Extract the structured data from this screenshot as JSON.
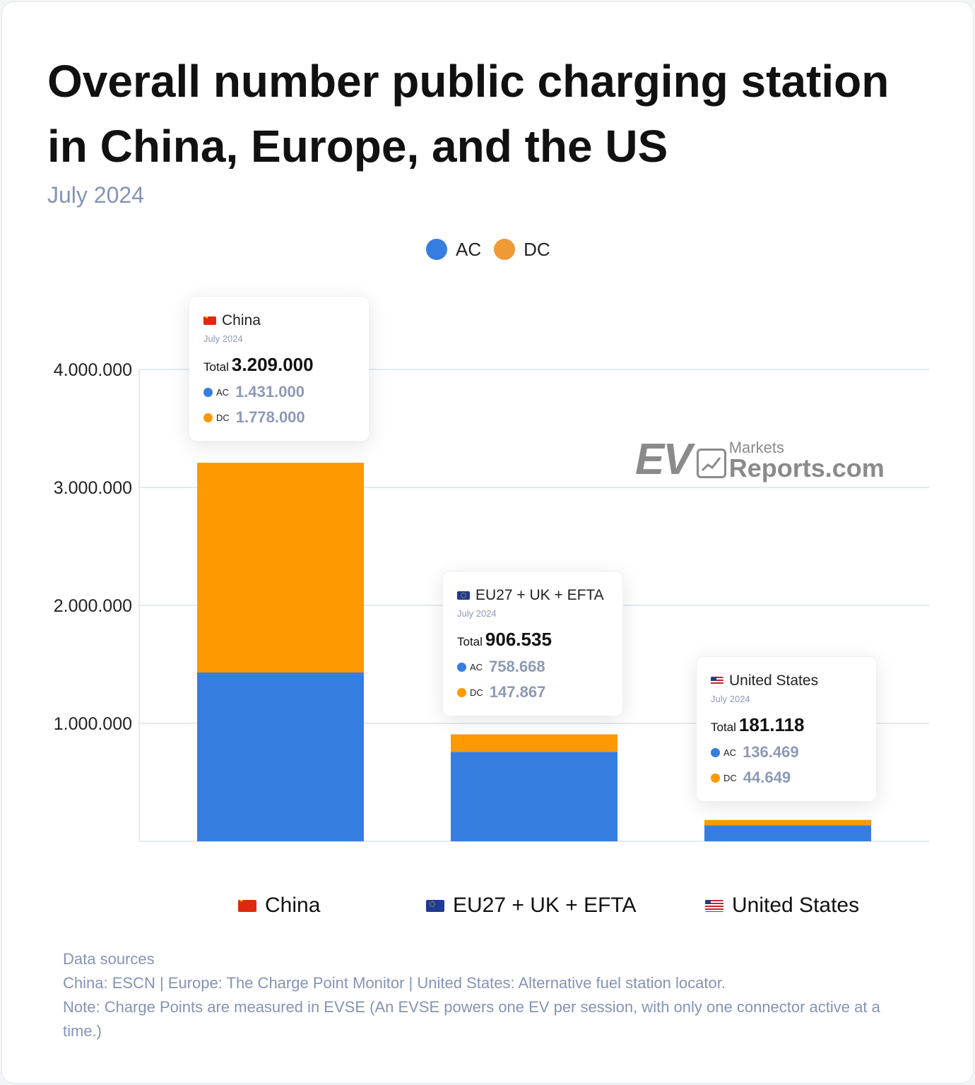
{
  "title": "Overall number public charging station in China, Europe, and the US",
  "subtitle": "July 2024",
  "colors": {
    "ac": "#367de0",
    "dc": "#ff9900",
    "legend_dc": "#ef9a36",
    "grid": "#e4e9f3"
  },
  "legend": [
    {
      "label": "AC",
      "color": "#367de0"
    },
    {
      "label": "DC",
      "color": "#ef9a36"
    }
  ],
  "chart_data": {
    "type": "bar",
    "stacked": true,
    "title": "Overall number public charging station in China, Europe, and the US",
    "subtitle": "July 2024",
    "categories": [
      "China",
      "EU27 + UK + EFTA",
      "United States"
    ],
    "series": [
      {
        "name": "AC",
        "values": [
          1431000,
          758668,
          136469
        ]
      },
      {
        "name": "DC",
        "values": [
          1778000,
          147867,
          44649
        ]
      }
    ],
    "totals": [
      3209000,
      906535,
      181118
    ],
    "ylim": [
      0,
      4000000
    ],
    "yticks": [
      "1.000.000",
      "2.000.000",
      "3.000.000",
      "4.000.000"
    ],
    "ytick_values": [
      1000000,
      2000000,
      3000000,
      4000000
    ],
    "grid": true,
    "legend_position": "top-center"
  },
  "tooltips": [
    {
      "flag": "flag-cn",
      "name": "China",
      "date": "July 2024",
      "total_label": "Total",
      "total": "3.209.000",
      "ac_label": "AC",
      "ac": "1.431.000",
      "dc_label": "DC",
      "dc": "1.778.000"
    },
    {
      "flag": "flag-eu",
      "name": "EU27 + UK + EFTA",
      "date": "July 2024",
      "total_label": "Total",
      "total": "906.535",
      "ac_label": "AC",
      "ac": "758.668",
      "dc_label": "DC",
      "dc": "147.867"
    },
    {
      "flag": "flag-us",
      "name": "United States",
      "date": "July 2024",
      "total_label": "Total",
      "total": "181.118",
      "ac_label": "AC",
      "ac": "136.469",
      "dc_label": "DC",
      "dc": "44.649"
    }
  ],
  "watermark": {
    "ev": "EV",
    "markets": "Markets",
    "reports": "Reports.com",
    "icon": "line-chart-icon"
  },
  "sources": {
    "heading": "Data sources",
    "line1": "China: ESCN  | Europe: The Charge Point Monitor | United States: Alternative fuel station locator.",
    "line2": "Note: Charge Points are measured in EVSE (An EVSE powers one EV per session, with only one connector active at a time.)"
  }
}
